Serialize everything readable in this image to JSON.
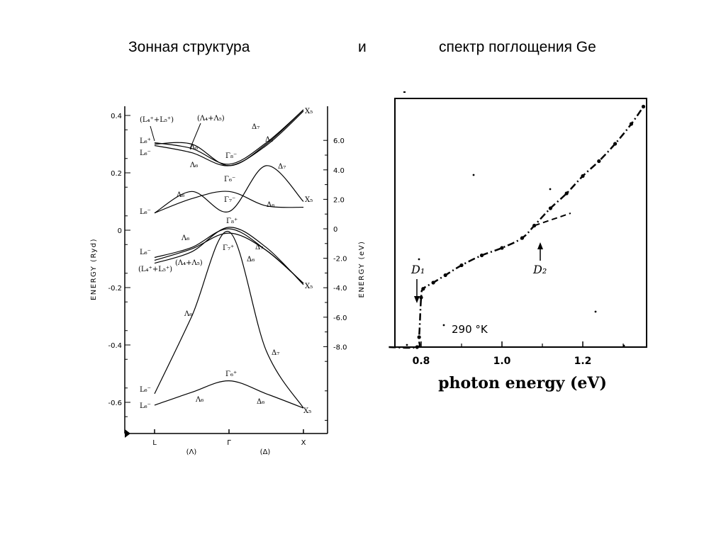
{
  "slide": {
    "title_left": "Зонная структура",
    "title_mid": "и",
    "title_right": "спектр поглощения Ge"
  },
  "chart_data": [
    {
      "type": "line",
      "ylabel_left": "ENERGY (Ryd)",
      "ylabel_right": "ENERGY (eV)",
      "yticks_left": [
        "0.4",
        "0.2",
        "0",
        "-0.2",
        "-0.4",
        "-0.6"
      ],
      "yticks_right": [
        "6.0",
        "4.0",
        "2.0",
        "0",
        "-2.0",
        "-4.0",
        "-6.0",
        "-8.0"
      ],
      "xticks": [
        "L",
        "Γ",
        "X"
      ],
      "xsub": [
        "(Λ)",
        "(Δ)"
      ],
      "ylim": [
        -0.7,
        0.42
      ],
      "x": [
        0.0,
        0.25,
        0.5,
        0.75,
        1.0
      ],
      "series": [
        {
          "values": [
            -0.61,
            -0.565,
            -0.525,
            -0.57,
            -0.62
          ]
        },
        {
          "values": [
            -0.57,
            -0.3,
            -0.005,
            -0.42,
            -0.62
          ]
        },
        {
          "values": [
            -0.105,
            -0.065,
            -0.01,
            -0.07,
            -0.185
          ]
        },
        {
          "values": [
            -0.095,
            -0.06,
            0.005,
            -0.07,
            -0.185
          ]
        },
        {
          "values": [
            -0.115,
            -0.075,
            0.01,
            -0.06,
            -0.19
          ]
        },
        {
          "values": [
            0.06,
            0.135,
            0.065,
            0.225,
            0.1
          ]
        },
        {
          "values": [
            0.06,
            0.11,
            0.135,
            0.085,
            0.08
          ]
        },
        {
          "values": [
            0.295,
            0.27,
            0.225,
            0.295,
            0.415
          ]
        },
        {
          "values": [
            0.305,
            0.285,
            0.23,
            0.305,
            0.42
          ]
        },
        {
          "values": [
            0.3,
            0.3,
            0.225,
            0.3,
            0.42
          ]
        }
      ],
      "band_labels": [
        "(L₄⁺+L₅⁺)",
        "(Λ₄+Λ₅)",
        "L₆⁺",
        "L₆⁻",
        "L₆⁻",
        "L₆⁻",
        "(L₄⁺+L₅⁺)",
        "(Λ₄+Λ₅)",
        "L₆⁻",
        "L₆⁻",
        "Λ₆",
        "Λ₆",
        "Λ₆",
        "Λ₆",
        "Λ₆",
        "Λ₆",
        "Δ₇",
        "Δ₆",
        "Δ₇",
        "Δ₆",
        "Δ₇",
        "Δ₆",
        "Δ₇",
        "Δ₆",
        "Γ₈⁻",
        "Γ₆⁻",
        "Γ₇⁻",
        "Γ₈⁺",
        "Γ₇⁺",
        "Γ₆⁺",
        "X₅",
        "X₅",
        "X₅",
        "X₅"
      ]
    },
    {
      "type": "line",
      "xlabel": "photon energy (eV)",
      "xticks": [
        "0.8",
        "1.0",
        "1.2"
      ],
      "xlim": [
        0.72,
        1.35
      ],
      "ylim": [
        0,
        1
      ],
      "series": [
        {
          "values": [
            [
              0.72,
              0.0
            ],
            [
              0.79,
              0.0
            ],
            [
              0.795,
              0.04
            ],
            [
              0.8,
              0.2
            ],
            [
              0.805,
              0.235
            ],
            [
              0.83,
              0.26
            ],
            [
              0.86,
              0.29
            ],
            [
              0.9,
              0.33
            ],
            [
              0.95,
              0.37
            ],
            [
              1.0,
              0.4
            ],
            [
              1.05,
              0.44
            ],
            [
              1.08,
              0.49
            ],
            [
              1.12,
              0.56
            ],
            [
              1.16,
              0.62
            ],
            [
              1.2,
              0.69
            ],
            [
              1.24,
              0.75
            ],
            [
              1.28,
              0.82
            ],
            [
              1.32,
              0.9
            ],
            [
              1.35,
              0.97
            ]
          ]
        }
      ],
      "extrapolation": [
        [
          1.08,
          0.49
        ],
        [
          1.17,
          0.54
        ]
      ],
      "annotations": [
        "D₁",
        "D₂",
        "290 °K"
      ]
    }
  ]
}
